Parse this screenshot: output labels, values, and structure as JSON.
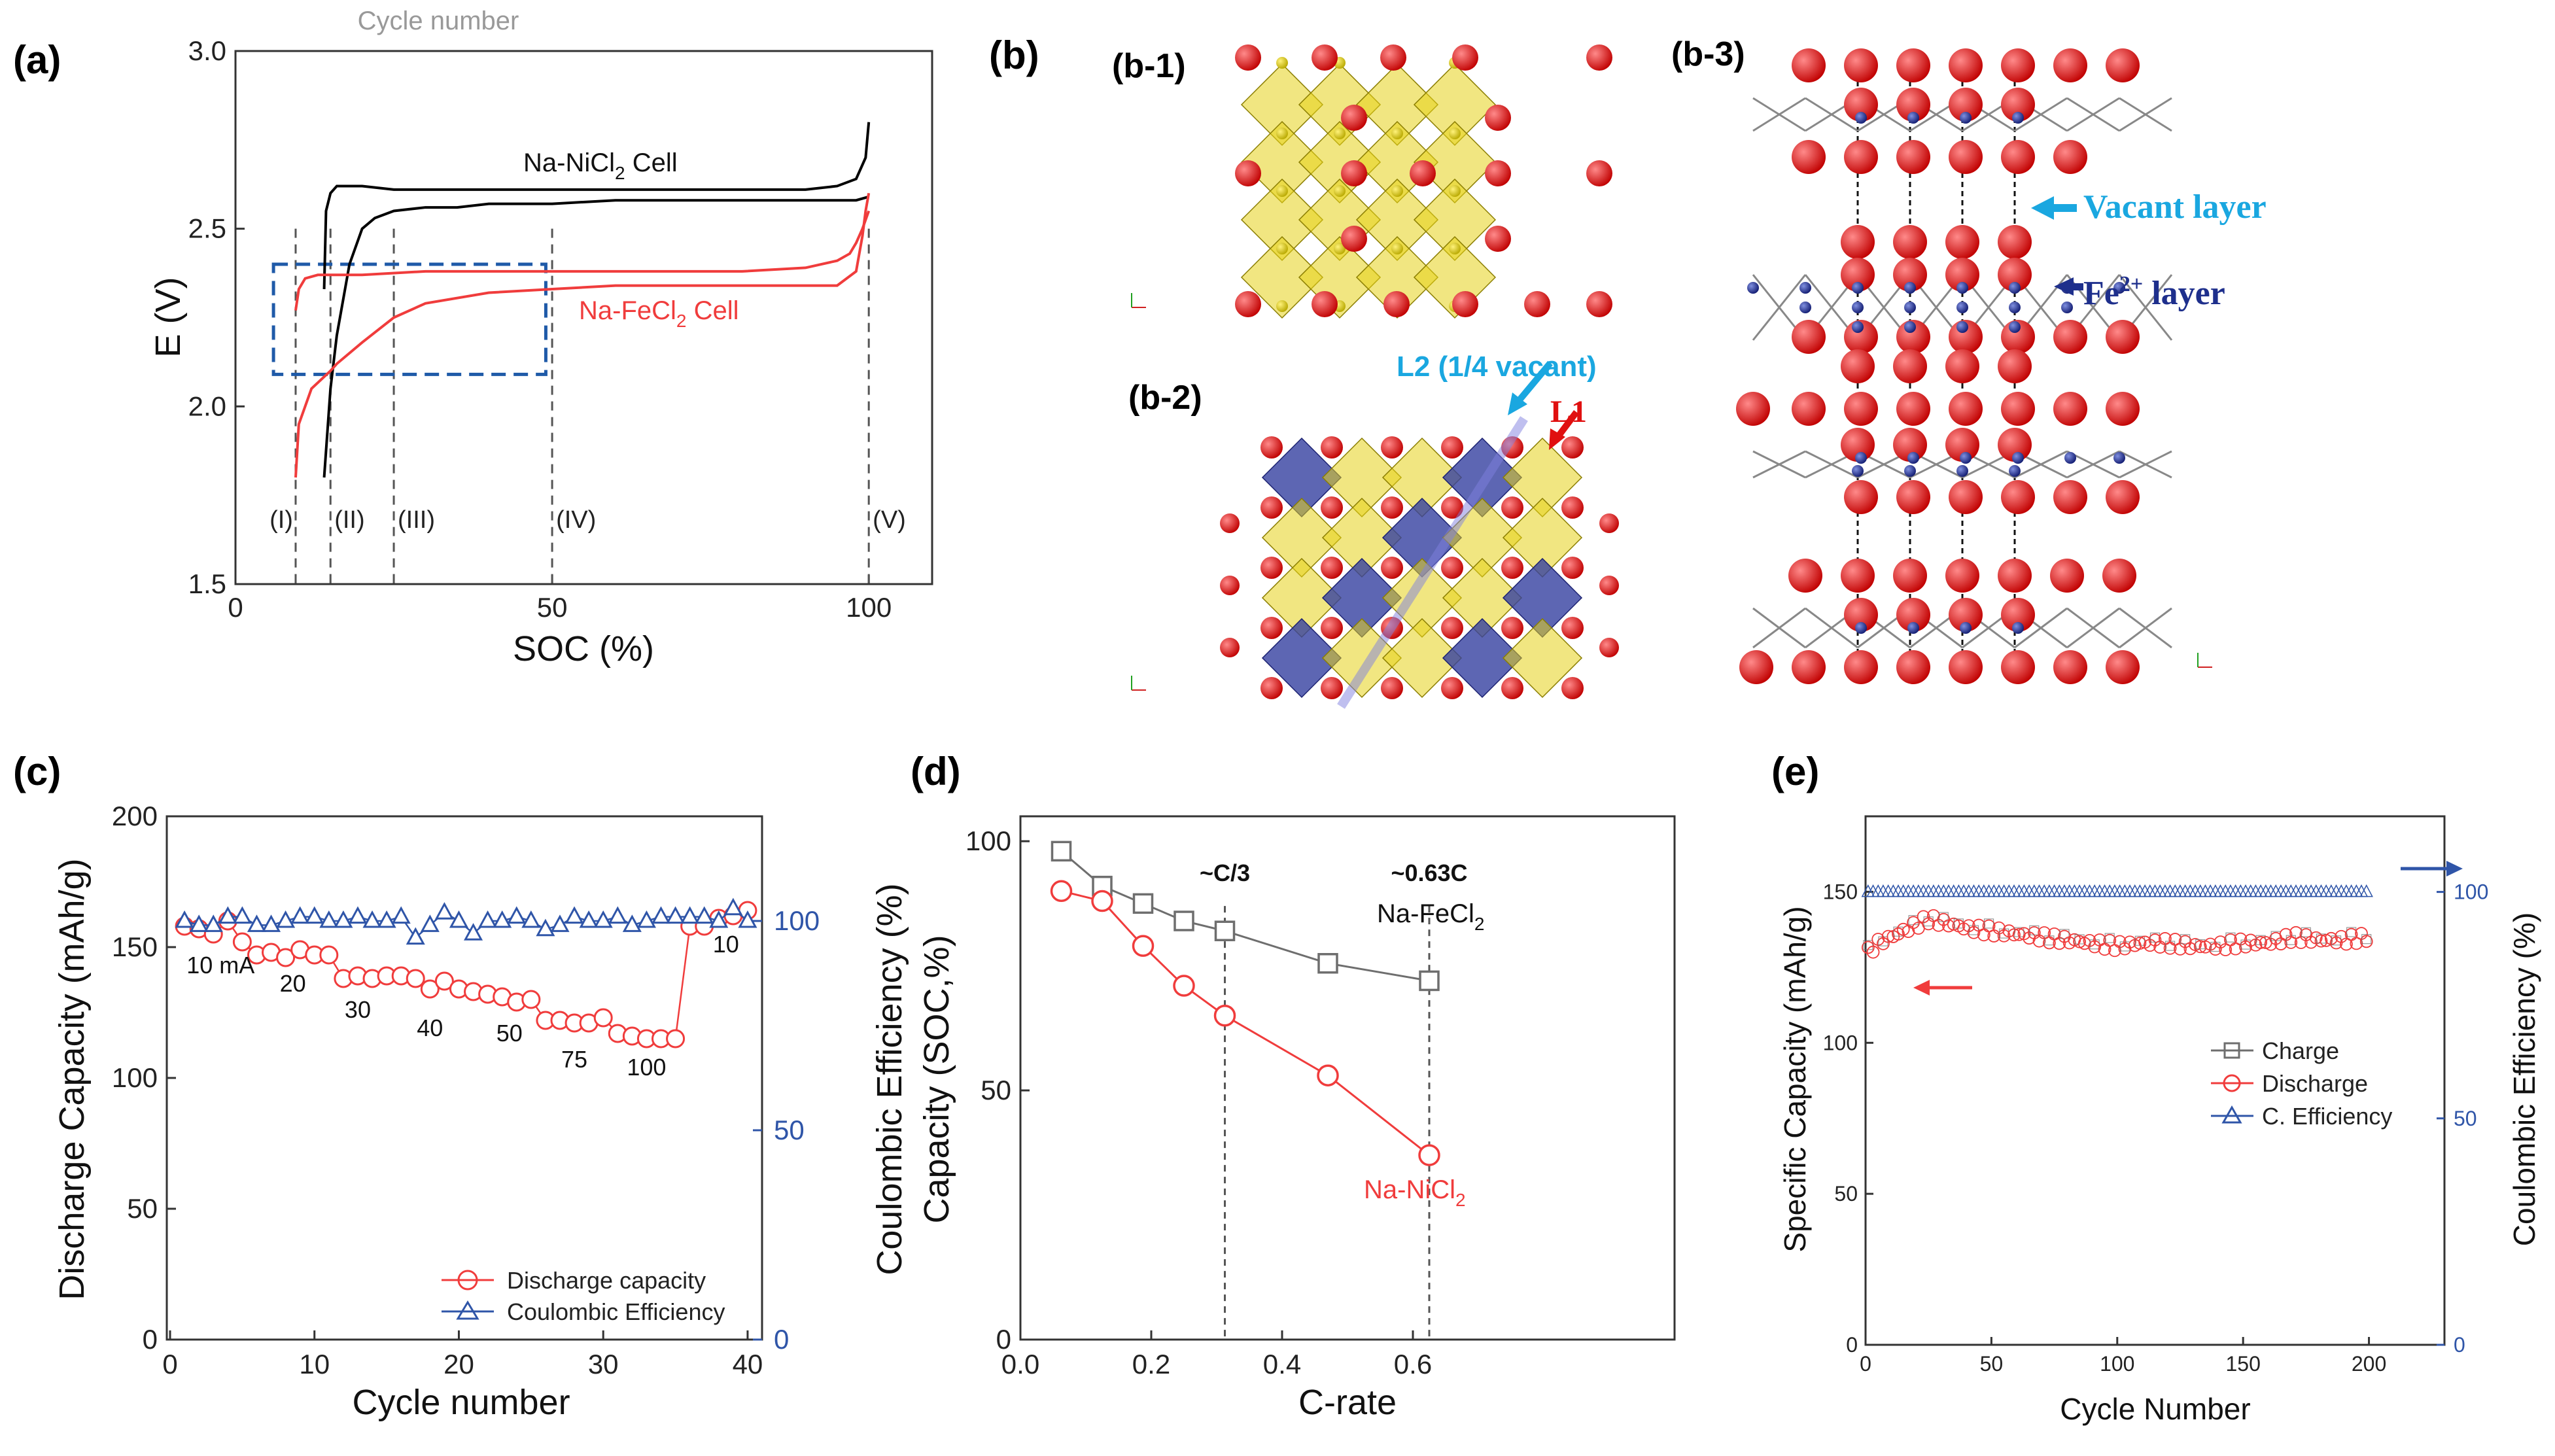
{
  "colors": {
    "black": "#000000",
    "red": "#f03c3c",
    "blue": "#2f55a8",
    "gray": "#6e6e6e",
    "box_blue": "#1f5aa8",
    "cyan": "#1aa7e0",
    "navy": "#1e2f8c",
    "yellow": "#e6d21a",
    "atom_red": "#e01010",
    "atom_blue": "#1e2f8c"
  },
  "chart_data": [
    {
      "id": "a",
      "panel_label": "(a)",
      "type": "line",
      "title": "Cycle number",
      "xlabel": "SOC (%)",
      "ylabel": "E (V)",
      "xlim": [
        0,
        110
      ],
      "ylim": [
        1.5,
        3.0
      ],
      "x_ticks": [
        0,
        50,
        100
      ],
      "y_ticks": [
        "1.5",
        "2.0",
        "2.5",
        "3.0"
      ],
      "series": [
        {
          "name": "Na-NiCl2 charge",
          "color": "black",
          "x": [
            14,
            14.3,
            15,
            16,
            18,
            20,
            25,
            30,
            40,
            50,
            60,
            70,
            80,
            90,
            95,
            98,
            99.5,
            100
          ],
          "y": [
            2.33,
            2.55,
            2.6,
            2.62,
            2.62,
            2.62,
            2.61,
            2.61,
            2.61,
            2.61,
            2.61,
            2.61,
            2.61,
            2.61,
            2.62,
            2.64,
            2.7,
            2.8
          ]
        },
        {
          "name": "Na-NiCl2 discharge",
          "color": "black",
          "x": [
            100,
            98,
            95,
            90,
            80,
            70,
            60,
            50,
            40,
            35,
            30,
            25,
            22,
            20,
            18,
            16,
            15,
            14
          ],
          "y": [
            2.59,
            2.58,
            2.58,
            2.58,
            2.58,
            2.58,
            2.58,
            2.57,
            2.57,
            2.56,
            2.56,
            2.55,
            2.53,
            2.5,
            2.4,
            2.2,
            2.05,
            1.8
          ]
        },
        {
          "name": "Na-FeCl2 charge",
          "color": "red",
          "x": [
            9.5,
            10,
            11,
            13,
            15,
            20,
            30,
            40,
            50,
            60,
            70,
            80,
            90,
            95,
            97,
            98,
            99,
            100
          ],
          "y": [
            2.27,
            2.33,
            2.36,
            2.37,
            2.37,
            2.37,
            2.38,
            2.38,
            2.38,
            2.38,
            2.38,
            2.38,
            2.39,
            2.41,
            2.43,
            2.46,
            2.5,
            2.55
          ]
        },
        {
          "name": "Na-FeCl2 discharge",
          "color": "red",
          "x": [
            100,
            99.5,
            99,
            98,
            95,
            90,
            80,
            70,
            60,
            50,
            40,
            30,
            25,
            20,
            16,
            15,
            12,
            10,
            9.5
          ],
          "y": [
            2.6,
            2.55,
            2.48,
            2.38,
            2.34,
            2.34,
            2.34,
            2.34,
            2.34,
            2.33,
            2.32,
            2.29,
            2.25,
            2.18,
            2.12,
            2.1,
            2.05,
            1.95,
            1.8
          ]
        }
      ],
      "labels": {
        "nicl2": "Na-NiCl",
        "nicl2_sub": "2",
        "nicl2_tail": " Cell",
        "fecl2": "Na-FeCl",
        "fecl2_sub": "2",
        "fecl2_tail": " Cell"
      },
      "regions": [
        {
          "label": "(I)",
          "x": 9.5
        },
        {
          "label": "(II)",
          "x": 15
        },
        {
          "label": "(III)",
          "x": 25
        },
        {
          "label": "(IV)",
          "x": 50
        },
        {
          "label": "(V)",
          "x": 100
        }
      ],
      "dashed_box": {
        "x0": 6,
        "x1": 49,
        "y0": 2.09,
        "y1": 2.4
      }
    },
    {
      "id": "c",
      "panel_label": "(c)",
      "type": "scatter",
      "xlabel": "Cycle number",
      "ylabel": "Discharge Capacity (mAh/g)",
      "y2label": "Coulombic Efficiency (%)",
      "xlim": [
        0,
        41
      ],
      "ylim": [
        0,
        200
      ],
      "y2lim": [
        0,
        125
      ],
      "x_ticks": [
        0,
        10,
        20,
        30,
        40
      ],
      "y_ticks": [
        0,
        50,
        100,
        150,
        200
      ],
      "y2_ticks": [
        0,
        50,
        100
      ],
      "x": [
        1,
        2,
        3,
        4,
        5,
        6,
        7,
        8,
        9,
        10,
        11,
        12,
        13,
        14,
        15,
        16,
        17,
        18,
        19,
        20,
        21,
        22,
        23,
        24,
        25,
        26,
        27,
        28,
        29,
        30,
        31,
        32,
        33,
        34,
        35,
        36,
        37,
        38,
        39,
        40
      ],
      "series": [
        {
          "name": "Discharge capacity",
          "color": "red",
          "marker": "circle",
          "axis": "left",
          "values": [
            158,
            157,
            155,
            160,
            152,
            147,
            148,
            146,
            149,
            147,
            147,
            138,
            139,
            138,
            139,
            139,
            138,
            134,
            137,
            134,
            133,
            132,
            131,
            129,
            130,
            122,
            122,
            121,
            121,
            123,
            117,
            116,
            115,
            115,
            115,
            158,
            158,
            161,
            162,
            164
          ]
        },
        {
          "name": "Coulombic Efficiency",
          "color": "blue",
          "marker": "triangle",
          "axis": "right",
          "values": [
            100,
            99,
            99,
            101,
            101,
            99,
            99,
            100,
            101,
            101,
            100,
            100,
            101,
            100,
            100,
            101,
            96,
            99,
            102,
            100,
            97,
            100,
            100,
            101,
            100,
            98,
            99,
            101,
            100,
            100,
            101,
            99,
            100,
            101,
            101,
            101,
            101,
            100,
            103,
            100
          ]
        }
      ],
      "annotations": [
        {
          "text": "10 mA",
          "x": 3.5,
          "y": 140
        },
        {
          "text": "20",
          "x": 8.5,
          "y": 133
        },
        {
          "text": "30",
          "x": 13,
          "y": 123
        },
        {
          "text": "40",
          "x": 18,
          "y": 116
        },
        {
          "text": "50",
          "x": 23.5,
          "y": 114
        },
        {
          "text": "75",
          "x": 28,
          "y": 104
        },
        {
          "text": "100",
          "x": 33,
          "y": 101
        },
        {
          "text": "10",
          "x": 38.5,
          "y": 148
        }
      ],
      "legend": [
        "Discharge capacity",
        "Coulombic Efficiency"
      ]
    },
    {
      "id": "d",
      "panel_label": "(d)",
      "type": "line",
      "xlabel": "C-rate",
      "ylabel": "Capacity (SOC,%)",
      "xlim": [
        0,
        1.0
      ],
      "ylim": [
        0,
        100
      ],
      "x_ticks": [
        "0.0",
        "0.2",
        "0.4",
        "0.6"
      ],
      "y_ticks": [
        0,
        50,
        100
      ],
      "series": [
        {
          "name": "Na-FeCl2",
          "color": "gray",
          "marker": "square",
          "x": [
            0.0625,
            0.125,
            0.1875,
            0.25,
            0.3125,
            0.47,
            0.625
          ],
          "y": [
            98,
            91,
            87.5,
            84,
            82,
            75.5,
            72
          ]
        },
        {
          "name": "Na-NiCl2",
          "color": "red",
          "marker": "circle",
          "x": [
            0.0625,
            0.125,
            0.1875,
            0.25,
            0.3125,
            0.47,
            0.625
          ],
          "y": [
            90,
            88,
            79,
            71,
            65,
            53,
            37
          ]
        }
      ],
      "vlines": [
        {
          "x": 0.3125,
          "label": "~C/3"
        },
        {
          "x": 0.625,
          "label": "~0.63C"
        }
      ],
      "labels": {
        "fecl2": "Na-FeCl",
        "fecl2_sub": "2",
        "nicl2": "Na-NiCl",
        "nicl2_sub": "2"
      }
    },
    {
      "id": "e",
      "panel_label": "(e)",
      "type": "scatter",
      "xlabel": "Cycle Number",
      "ylabel": "Specific Capacity (mAh/g)",
      "y2label": "Coulombic Efficiency (%)",
      "xlim": [
        0,
        230
      ],
      "ylim": [
        0,
        175
      ],
      "y2lim": [
        0,
        116.7
      ],
      "x_ticks": [
        0,
        50,
        100,
        150,
        200
      ],
      "y_ticks": [
        0,
        50,
        100,
        150
      ],
      "y2_ticks": [
        0,
        50,
        100
      ],
      "series": [
        {
          "name": "Charge",
          "color": "gray",
          "marker": "square",
          "description": "overlaps discharge"
        },
        {
          "name": "Discharge",
          "color": "red",
          "marker": "circle",
          "trend": {
            "x": [
              1,
              5,
              10,
              15,
              20,
              25,
              30,
              40,
              50,
              60,
              70,
              80,
              90,
              100,
              110,
              120,
              130,
              140,
              150,
              160,
              170,
              180,
              190,
              200
            ],
            "y": [
              130,
              133,
              135,
              137,
              139,
              141,
              140,
              138,
              137,
              136,
              135,
              134,
              133,
              132,
              133,
              133,
              132,
              132,
              133,
              133,
              135,
              134,
              134,
              135
            ]
          }
        },
        {
          "name": "C. Efficiency",
          "color": "blue",
          "marker": "triangle",
          "value": 100
        }
      ],
      "legend": [
        "Charge",
        "Discharge",
        "C. Efficiency"
      ]
    }
  ],
  "structure_b": {
    "panel_label": "(b)",
    "b1": "(b-1)",
    "b2": "(b-2)",
    "b3": "(b-3)",
    "l2_label": "L2 (1/4 vacant)",
    "l1_label": "L1",
    "vacant_label": "Vacant layer",
    "fe_label": "Fe",
    "fe_sup": "2+",
    "fe_tail": " layer"
  }
}
